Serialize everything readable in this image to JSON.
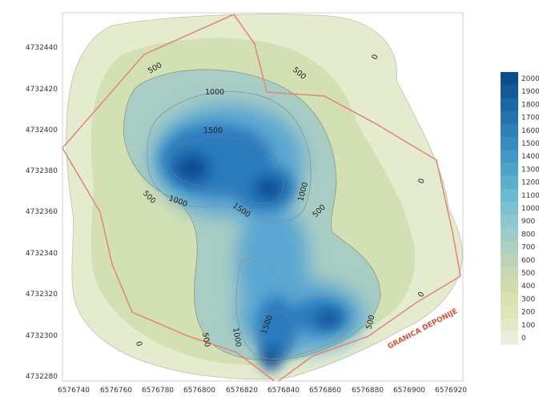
{
  "map": {
    "y_axis_labels": [
      "4732440",
      "4732420",
      "4732400",
      "4732380",
      "4732360",
      "4732340",
      "4732320",
      "4732300",
      "4732280"
    ],
    "x_axis_labels": [
      "6576740",
      "6576760",
      "6576780",
      "6576800",
      "6576820",
      "6576840",
      "6576860",
      "6576880",
      "6576900",
      "6576920"
    ],
    "contour_labels": [
      {
        "text": "500"
      },
      {
        "text": "500"
      },
      {
        "text": "1000"
      },
      {
        "text": "1500"
      },
      {
        "text": "1000"
      },
      {
        "text": "500"
      },
      {
        "text": "1500"
      },
      {
        "text": "1000"
      },
      {
        "text": "500"
      },
      {
        "text": "0"
      },
      {
        "text": "0"
      },
      {
        "text": "0"
      },
      {
        "text": "500"
      },
      {
        "text": "1000"
      },
      {
        "text": "1500"
      },
      {
        "text": "500"
      },
      {
        "text": "0"
      }
    ],
    "boundary_label": "GRANICA DEPONIJE",
    "colors": {
      "boundary": "#e08a7a",
      "contour_line": "#8a9a78",
      "low": "#e6ecd8",
      "high": "#0b4a8c"
    }
  },
  "legend": {
    "labels": [
      "2000",
      "1900",
      "1800",
      "1700",
      "1600",
      "1500",
      "1400",
      "1300",
      "1200",
      "1100",
      "1000",
      "900",
      "800",
      "700",
      "600",
      "500",
      "400",
      "300",
      "200",
      "100",
      "0"
    ],
    "colors": [
      "#0d4d8e",
      "#145a99",
      "#1b66a4",
      "#2373ae",
      "#2c80b8",
      "#368cbf",
      "#4198c6",
      "#4ea3cb",
      "#5caecf",
      "#6bb8d1",
      "#7cc0d1",
      "#8ec6cf",
      "#9ecbc9",
      "#aecfc2",
      "#bcd3ba",
      "#c7d8b2",
      "#d0dcac",
      "#d8e1af",
      "#dee5b9",
      "#e3e9c7",
      "#eaefdd"
    ]
  }
}
